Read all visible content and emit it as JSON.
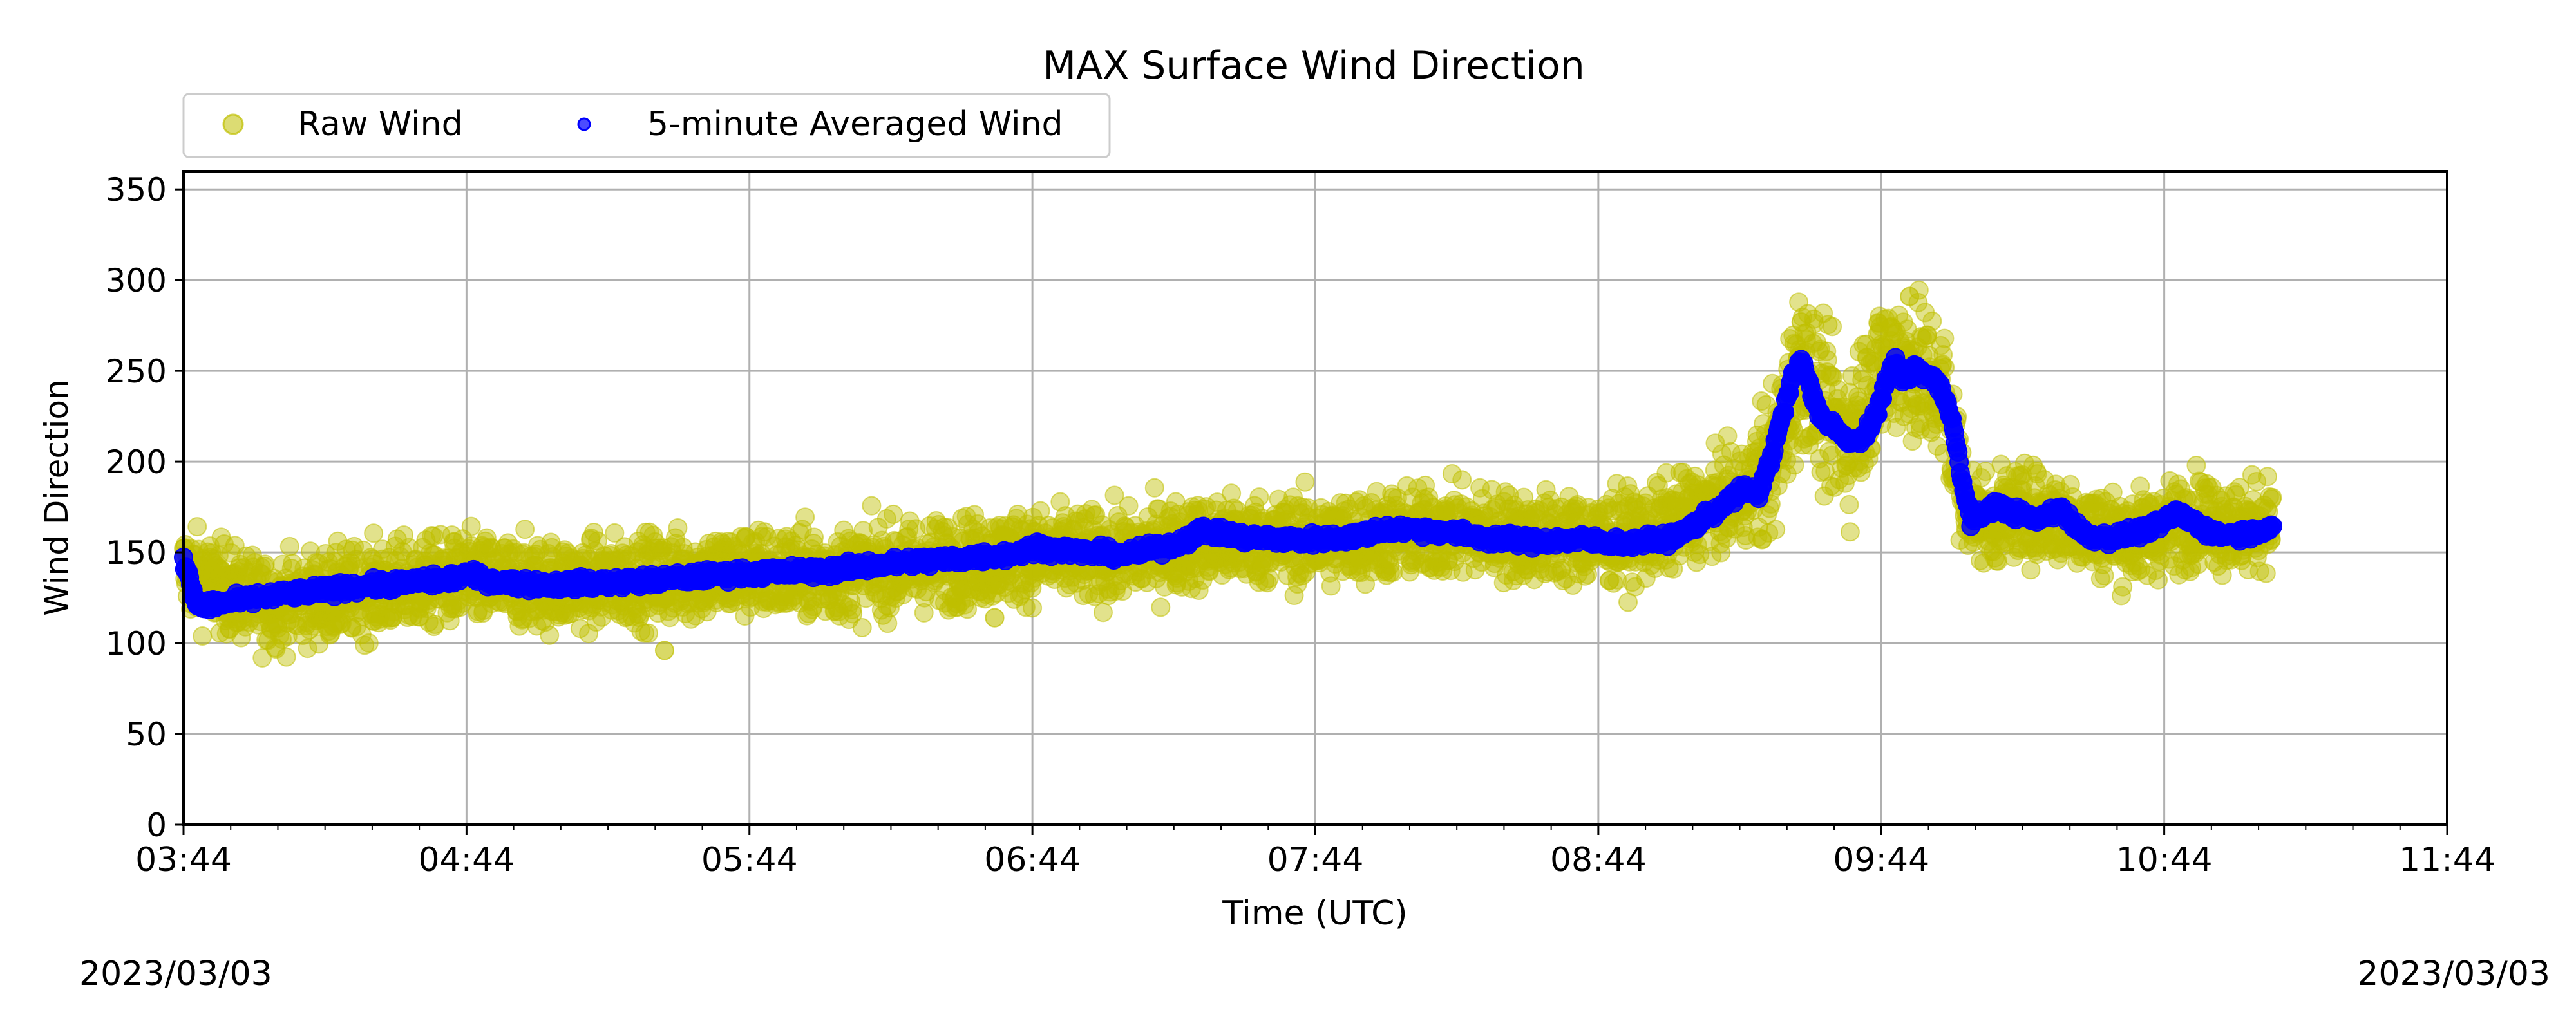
{
  "chart_data": {
    "type": "scatter",
    "title": "MAX Surface Wind Direction",
    "xlabel": "Time (UTC)",
    "ylabel": "Wind Direction",
    "date_left": "2023/03/03",
    "date_right": "2023/03/03",
    "xlim": [
      "03:44",
      "11:44"
    ],
    "ylim": [
      0,
      360
    ],
    "x_ticks": [
      "03:44",
      "04:44",
      "05:44",
      "06:44",
      "07:44",
      "08:44",
      "09:44",
      "10:44",
      "11:44"
    ],
    "y_ticks": [
      0,
      50,
      100,
      150,
      200,
      250,
      300,
      350
    ],
    "grid": true,
    "legend_position": "top-left",
    "series": [
      {
        "name": "Raw Wind",
        "color": "#bfbf00",
        "marker": "large translucent circle",
        "x": [
          "03:44",
          "04:00",
          "04:15",
          "04:30",
          "04:44",
          "05:00",
          "05:15",
          "05:30",
          "05:44",
          "06:00",
          "06:15",
          "06:30",
          "06:44",
          "07:00",
          "07:15",
          "07:30",
          "07:44",
          "08:00",
          "08:15",
          "08:30",
          "08:44",
          "08:55",
          "09:05",
          "09:15",
          "09:22",
          "09:27",
          "09:32",
          "09:37",
          "09:42",
          "09:47",
          "09:52",
          "09:57",
          "10:02",
          "10:07",
          "10:12",
          "10:20",
          "10:30",
          "10:37",
          "10:44",
          "10:52",
          "11:00",
          "11:07"
        ],
        "y": [
          140,
          122,
          126,
          132,
          135,
          132,
          134,
          137,
          139,
          138,
          142,
          145,
          149,
          147,
          154,
          157,
          156,
          160,
          162,
          158,
          157,
          160,
          172,
          182,
          204,
          258,
          226,
          212,
          244,
          258,
          248,
          238,
          175,
          166,
          172,
          170,
          162,
          158,
          163,
          170,
          162,
          168
        ],
        "outliers": [
          {
            "x": "05:26",
            "y": 96
          },
          {
            "x": "06:36",
            "y": 114
          },
          {
            "x": "09:50",
            "y": 291
          },
          {
            "x": "09:27",
            "y": 277
          }
        ]
      },
      {
        "name": "5-minute Averaged Wind",
        "color": "#0000ff",
        "marker": "small circle",
        "x": [
          "03:44",
          "03:47",
          "03:52",
          "04:00",
          "04:10",
          "04:20",
          "04:30",
          "04:40",
          "04:44",
          "04:50",
          "05:00",
          "05:10",
          "05:20",
          "05:30",
          "05:40",
          "05:50",
          "06:00",
          "06:10",
          "06:20",
          "06:30",
          "06:40",
          "06:45",
          "06:55",
          "07:05",
          "07:15",
          "07:20",
          "07:30",
          "07:40",
          "07:50",
          "08:00",
          "08:10",
          "08:20",
          "08:30",
          "08:40",
          "08:50",
          "09:00",
          "09:05",
          "09:10",
          "09:15",
          "09:18",
          "09:21",
          "09:23",
          "09:25",
          "09:27",
          "09:29",
          "09:31",
          "09:34",
          "09:37",
          "09:40",
          "09:43",
          "09:45",
          "09:47",
          "09:49",
          "09:51",
          "09:53",
          "09:55",
          "09:57",
          "09:59",
          "10:01",
          "10:03",
          "10:05",
          "10:08",
          "10:12",
          "10:17",
          "10:22",
          "10:27",
          "10:32",
          "10:37",
          "10:42",
          "10:47",
          "10:51",
          "10:55",
          "10:59",
          "11:03",
          "11:07"
        ],
        "y": [
          145,
          120,
          122,
          125,
          128,
          131,
          133,
          135,
          138,
          134,
          132,
          133,
          134,
          136,
          138,
          139,
          140,
          143,
          145,
          147,
          149,
          153,
          150,
          149,
          155,
          162,
          158,
          157,
          158,
          163,
          162,
          158,
          156,
          157,
          155,
          158,
          166,
          175,
          185,
          182,
          205,
          225,
          245,
          256,
          240,
          225,
          220,
          210,
          213,
          225,
          245,
          255,
          243,
          252,
          248,
          246,
          238,
          225,
          190,
          168,
          170,
          176,
          172,
          168,
          174,
          160,
          158,
          160,
          164,
          172,
          165,
          160,
          160,
          161,
          165
        ]
      }
    ]
  }
}
